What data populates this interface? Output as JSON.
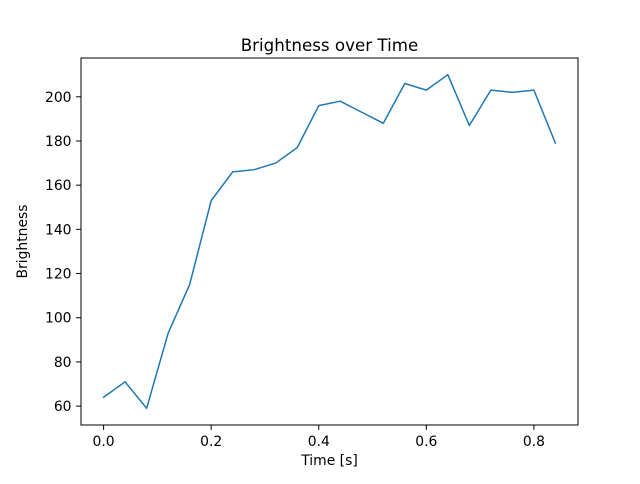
{
  "figure": {
    "background": "#ffffff"
  },
  "chart_data": {
    "type": "line",
    "title": "Brightness over Time",
    "xlabel": "Time [s]",
    "ylabel": "Brightness",
    "line_color": "#1f77b4",
    "line_width": 1.5,
    "grid": false,
    "legend": null,
    "x": [
      0.0,
      0.04,
      0.08,
      0.12,
      0.16,
      0.2,
      0.24,
      0.28,
      0.32,
      0.36,
      0.4,
      0.44,
      0.48,
      0.52,
      0.56,
      0.6,
      0.64,
      0.68,
      0.72,
      0.76,
      0.8,
      0.84
    ],
    "y": [
      64,
      71,
      59,
      93,
      115,
      153,
      166,
      167,
      170,
      177,
      196,
      198,
      193,
      188,
      206,
      203,
      210,
      187,
      203,
      202,
      203,
      179
    ],
    "xlim": [
      -0.042,
      0.882
    ],
    "ylim": [
      51.45,
      217.55
    ],
    "xticks": [
      0.0,
      0.2,
      0.4,
      0.6,
      0.8
    ],
    "xtick_labels": [
      "0.0",
      "0.2",
      "0.4",
      "0.6",
      "0.8"
    ],
    "yticks": [
      60,
      80,
      100,
      120,
      140,
      160,
      180,
      200
    ],
    "ytick_labels": [
      "60",
      "80",
      "100",
      "120",
      "140",
      "160",
      "180",
      "200"
    ]
  }
}
